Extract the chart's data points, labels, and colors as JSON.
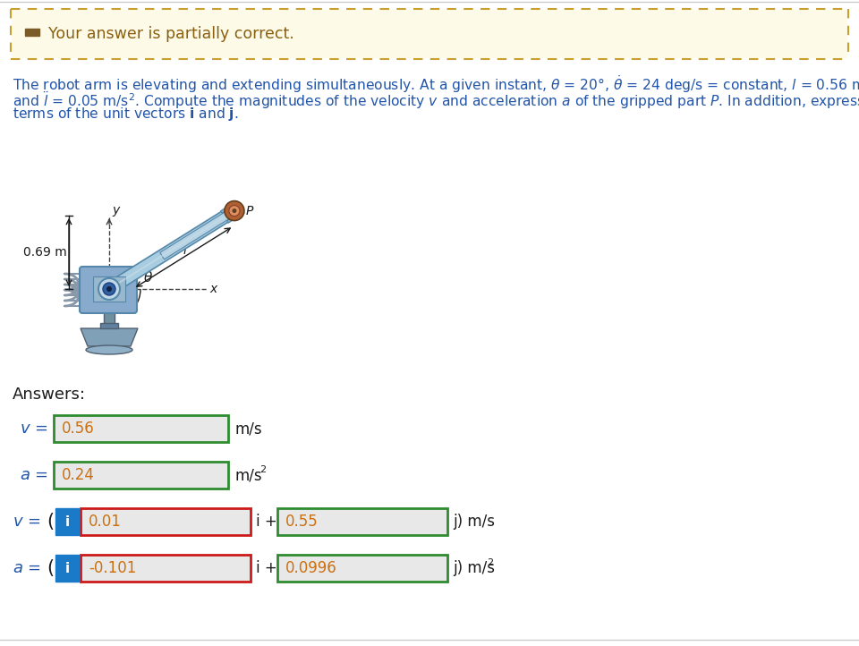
{
  "bg_color": "#ffffff",
  "banner_bg": "#fefae8",
  "banner_border": "#c8a030",
  "banner_text": "Your answer is partially correct.",
  "banner_icon_color": "#7a5c28",
  "problem_text_color": "#2255aa",
  "answers_label": "Answers:",
  "label_color": "#2255aa",
  "box_bg": "#e8e8e8",
  "green_border": "#2e8b2e",
  "red_border": "#cc1a1a",
  "blue_bg": "#1a7ac8",
  "v_scalar": "0.56",
  "a_scalar": "0.24",
  "v_i_comp": "0.01",
  "v_j_comp": "0.55",
  "a_i_comp": "-0.101",
  "a_j_comp": "0.0996",
  "dim_label": "0.69 m",
  "arm_color": "#a8cce0",
  "arm_edge": "#5588aa",
  "body_color": "#88aacc",
  "base_color": "#7090a8",
  "pivot_color": "#c0d8e8",
  "grip_outer": "#b06030",
  "grip_inner": "#e09060",
  "figure_width": 9.6,
  "figure_height": 7.22
}
